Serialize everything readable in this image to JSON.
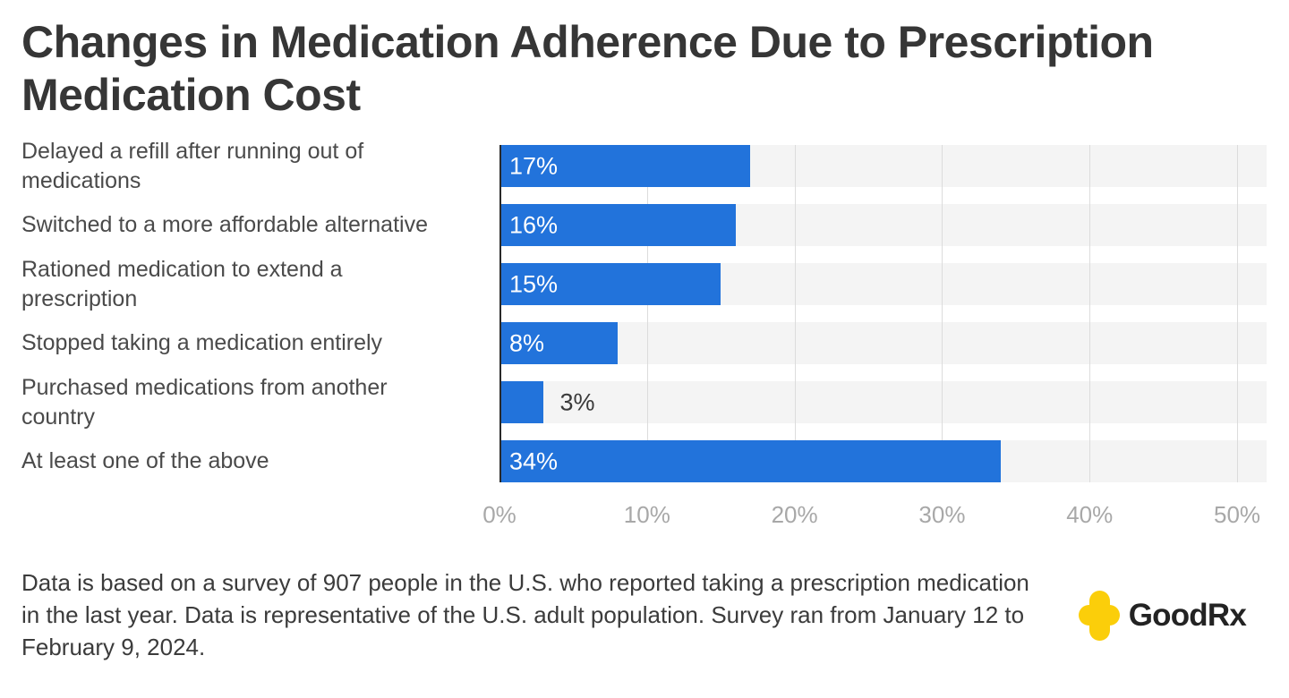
{
  "title": "Changes in Medication Adherence Due to Prescription Medication Cost",
  "source_note": "Data is based on a survey of 907 people in the U.S. who reported taking a prescription medication in the last year. Data is representative of the U.S. adult population. Survey ran from January 12 to February 9, 2024.",
  "logo": {
    "text": "GoodRx",
    "icon": "plus-cross-icon"
  },
  "colors": {
    "bar": "#2273DB",
    "track": "#F4F4F4",
    "gridline": "#DCDCDC",
    "axis_line": "#2A2A2A",
    "title_text": "#363636",
    "label_text": "#4A4A4A",
    "tick_text": "#A8A8A8",
    "bar_label_inside": "#FFFFFF",
    "bar_label_outside": "#3A3A3A",
    "brand_yellow": "#FBCE0A"
  },
  "chart_data": {
    "type": "bar",
    "orientation": "horizontal",
    "title": "Changes in Medication Adherence Due to Prescription Medication Cost",
    "categories": [
      "Delayed a refill after running out of medications",
      "Switched to a more affordable alternative",
      "Rationed medication to extend a prescription",
      "Stopped taking a medication entirely",
      "Purchased medications from another country",
      "At least one of the above"
    ],
    "values": [
      17,
      16,
      15,
      8,
      3,
      34
    ],
    "value_labels": [
      "17%",
      "16%",
      "15%",
      "8%",
      "3%",
      "34%"
    ],
    "x_ticks": [
      "0%",
      "10%",
      "20%",
      "30%",
      "40%",
      "50%"
    ],
    "x_tick_values": [
      0,
      10,
      20,
      30,
      40,
      50
    ],
    "xlim": [
      0,
      52
    ],
    "xlabel": "",
    "ylabel": "",
    "grid": "vertical",
    "legend": "none",
    "inside_label_min_value": 8
  }
}
